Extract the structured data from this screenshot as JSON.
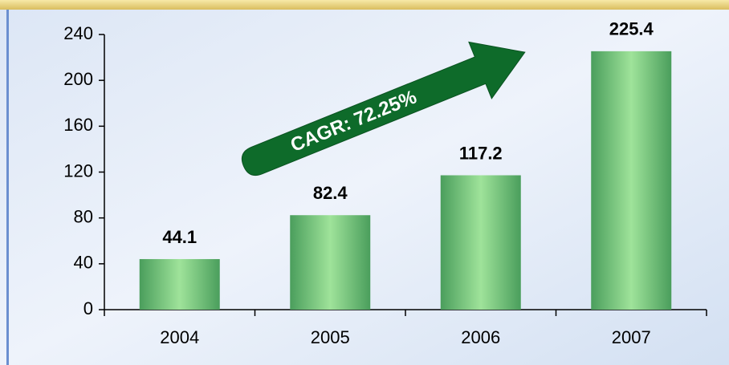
{
  "chart_data": {
    "type": "bar",
    "categories": [
      "2004",
      "2005",
      "2006",
      "2007"
    ],
    "values": [
      44.1,
      82.4,
      117.2,
      225.4
    ],
    "color": "#5fba6c",
    "ylim": [
      0,
      240
    ],
    "yticks": [
      0,
      40,
      80,
      120,
      160,
      200,
      240
    ],
    "annotation": "CAGR: 72.25%",
    "data_labels": true
  }
}
